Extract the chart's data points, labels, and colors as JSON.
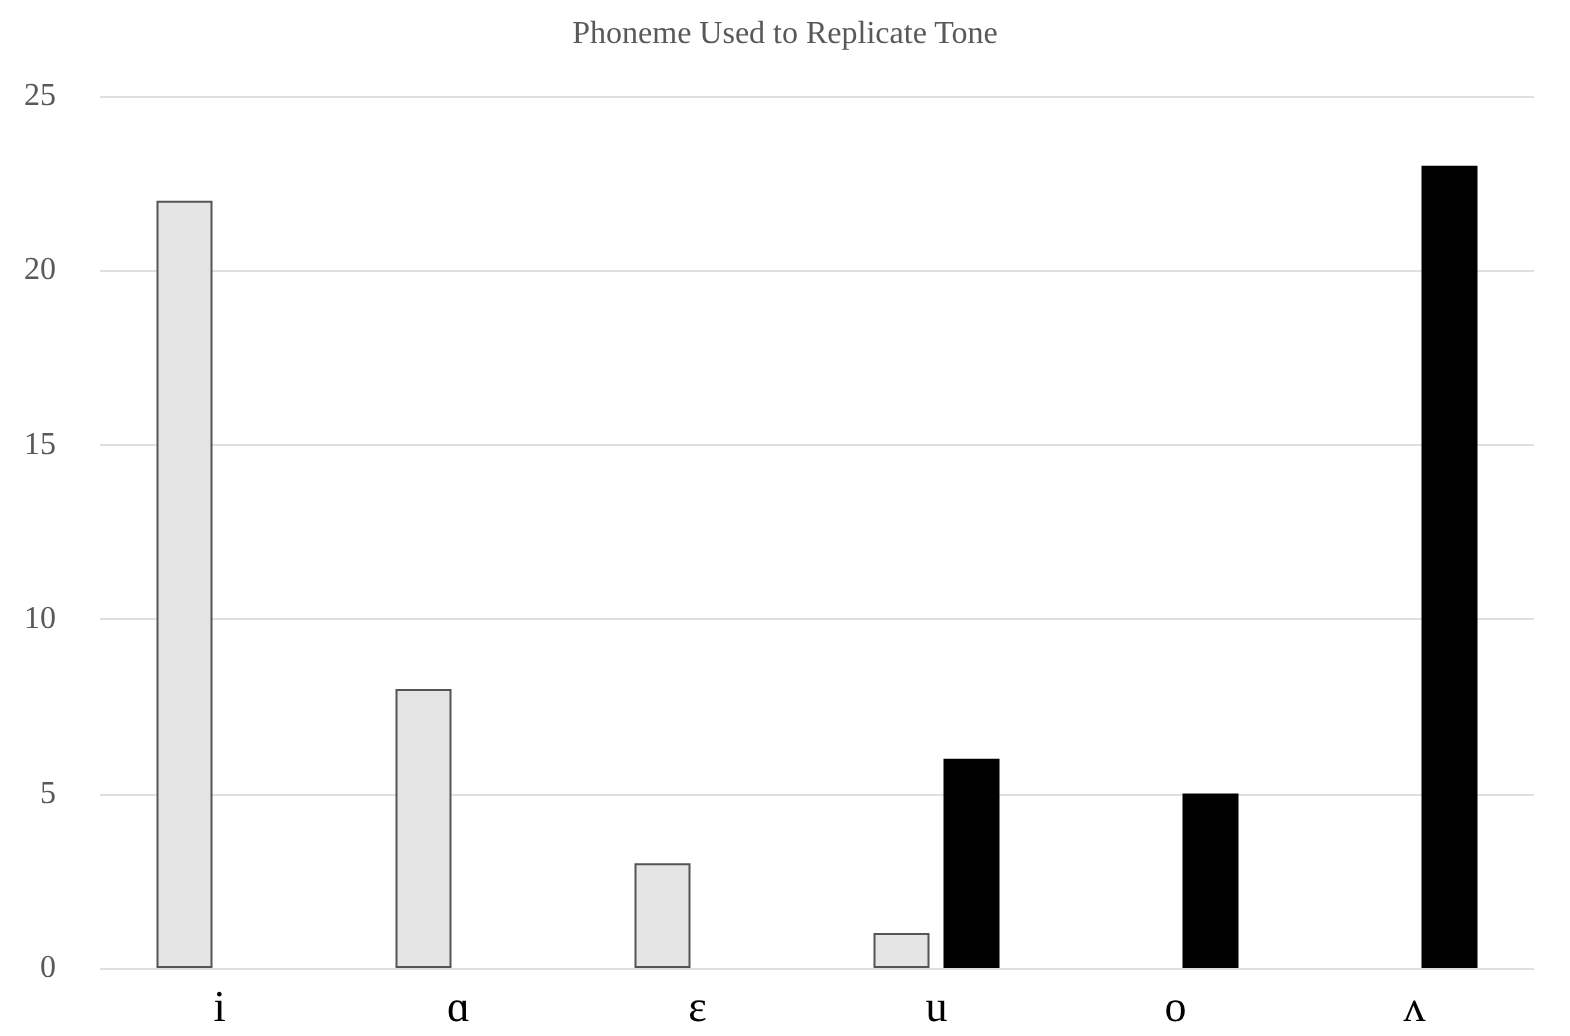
{
  "chart_data": {
    "type": "bar",
    "title": "Phoneme Used to Replicate Tone",
    "categories": [
      "i",
      "ɑ",
      "ɛ",
      "u",
      "o",
      "ʌ"
    ],
    "series": [
      {
        "color": "#e5e5e5",
        "values": [
          22,
          8,
          3,
          1,
          null,
          null
        ]
      },
      {
        "color": "#000000",
        "values": [
          null,
          null,
          null,
          6,
          5,
          23
        ]
      }
    ],
    "ylim": [
      0,
      25
    ],
    "yticks": [
      0,
      5,
      10,
      15,
      20,
      25
    ],
    "grid": "y"
  }
}
